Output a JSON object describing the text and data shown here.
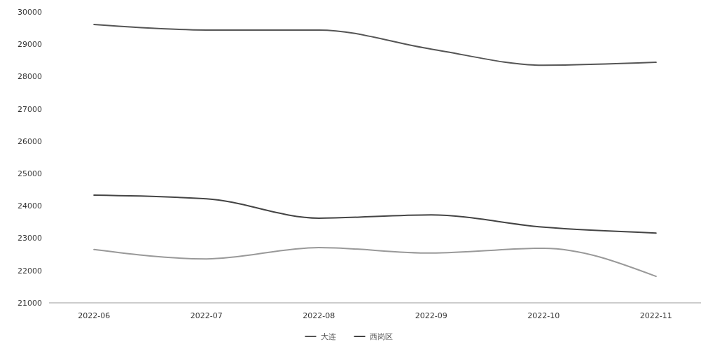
{
  "chart_data": {
    "type": "line",
    "categories": [
      "2022-06",
      "2022-07",
      "2022-08",
      "2022-09",
      "2022-10",
      "2022-11"
    ],
    "series": [
      {
        "name": "大连",
        "color": "#555555",
        "values": [
          29610,
          29440,
          29440,
          28850,
          28350,
          28440
        ]
      },
      {
        "name": "西岗区",
        "color": "#444444",
        "values": [
          24330,
          24220,
          23620,
          23720,
          23340,
          23160
        ]
      },
      {
        "color": "#999999",
        "values": [
          22650,
          22360,
          22710,
          22540,
          22690,
          21820
        ]
      }
    ],
    "ylim": [
      21000,
      30000
    ],
    "yticks": [
      21000,
      22000,
      23000,
      24000,
      25000,
      26000,
      27000,
      28000,
      29000,
      30000
    ],
    "grid": false,
    "legend": "bottom",
    "marker": "none",
    "line_style": "solid"
  }
}
